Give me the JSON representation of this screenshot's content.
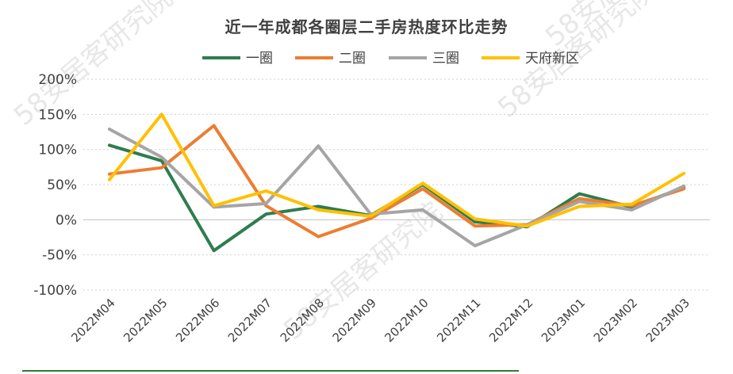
{
  "chart_data": {
    "type": "line",
    "title": "近一年成都各圈层二手房热度环比走势",
    "categories": [
      "2022M04",
      "2022M05",
      "2022M06",
      "2022M07",
      "2022M08",
      "2022M09",
      "2022M10",
      "2022M11",
      "2022M12",
      "2023M01",
      "2023M02",
      "2023M03"
    ],
    "yticks": [
      "200%",
      "150%",
      "100%",
      "50%",
      "0%",
      "-50%",
      "-100%"
    ],
    "ylim": [
      -100,
      200
    ],
    "unit": "%",
    "grid": true,
    "legend_position": "top",
    "series": [
      {
        "name": "一圈",
        "color": "#2e7d4f",
        "values": [
          106,
          84,
          -44,
          8,
          19,
          6,
          50,
          -3,
          -10,
          37,
          18,
          46
        ]
      },
      {
        "name": "二圈",
        "color": "#ed7d31",
        "values": [
          65,
          74,
          134,
          20,
          -24,
          2,
          44,
          -9,
          -7,
          30,
          20,
          44
        ]
      },
      {
        "name": "三圈",
        "color": "#a5a5a5",
        "values": [
          129,
          89,
          18,
          23,
          105,
          8,
          14,
          -37,
          -7,
          26,
          14,
          48
        ]
      },
      {
        "name": "天府新区",
        "color": "#ffc000",
        "values": [
          57,
          150,
          20,
          41,
          14,
          5,
          52,
          1,
          -9,
          19,
          22,
          66
        ]
      }
    ]
  },
  "watermarks": [
    "58安居客研究院",
    "58安居客研究院",
    "58安居客研究院",
    "58安居客研究院"
  ]
}
